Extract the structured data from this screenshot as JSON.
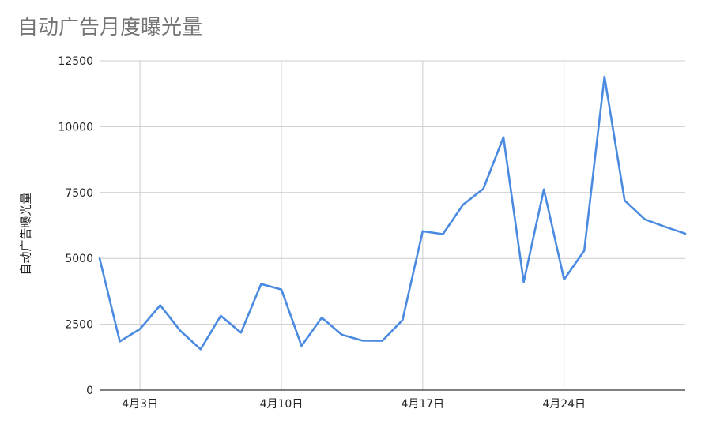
{
  "chart_data": {
    "type": "line",
    "title": "自动广告月度曝光量",
    "xlabel": "",
    "ylabel": "自动广告曝光量",
    "x": [
      "4月1日",
      "4月2日",
      "4月3日",
      "4月4日",
      "4月5日",
      "4月6日",
      "4月7日",
      "4月8日",
      "4月9日",
      "4月10日",
      "4月11日",
      "4月12日",
      "4月13日",
      "4月14日",
      "4月15日",
      "4月16日",
      "4月17日",
      "4月18日",
      "4月19日",
      "4月20日",
      "4月21日",
      "4月22日",
      "4月23日",
      "4月24日",
      "4月25日",
      "4月26日",
      "4月27日",
      "4月28日",
      "4月29日",
      "4月30日"
    ],
    "x_ticks": [
      "4月3日",
      "4月10日",
      "4月17日",
      "4月24日"
    ],
    "series": [
      {
        "values": [
          5000,
          1850,
          2320,
          3220,
          2250,
          1550,
          2820,
          2180,
          4030,
          3820,
          1680,
          2750,
          2100,
          1880,
          1870,
          2660,
          6030,
          5920,
          7040,
          7640,
          9600,
          4100,
          7620,
          4200,
          5290,
          11900,
          7200,
          6480,
          6200,
          5940
        ],
        "color": "#4a8ae0"
      }
    ],
    "y_ticks": [
      0,
      2500,
      5000,
      7500,
      10000,
      12500
    ],
    "ylim": [
      0,
      12500
    ],
    "grid": true,
    "legend": "none"
  }
}
